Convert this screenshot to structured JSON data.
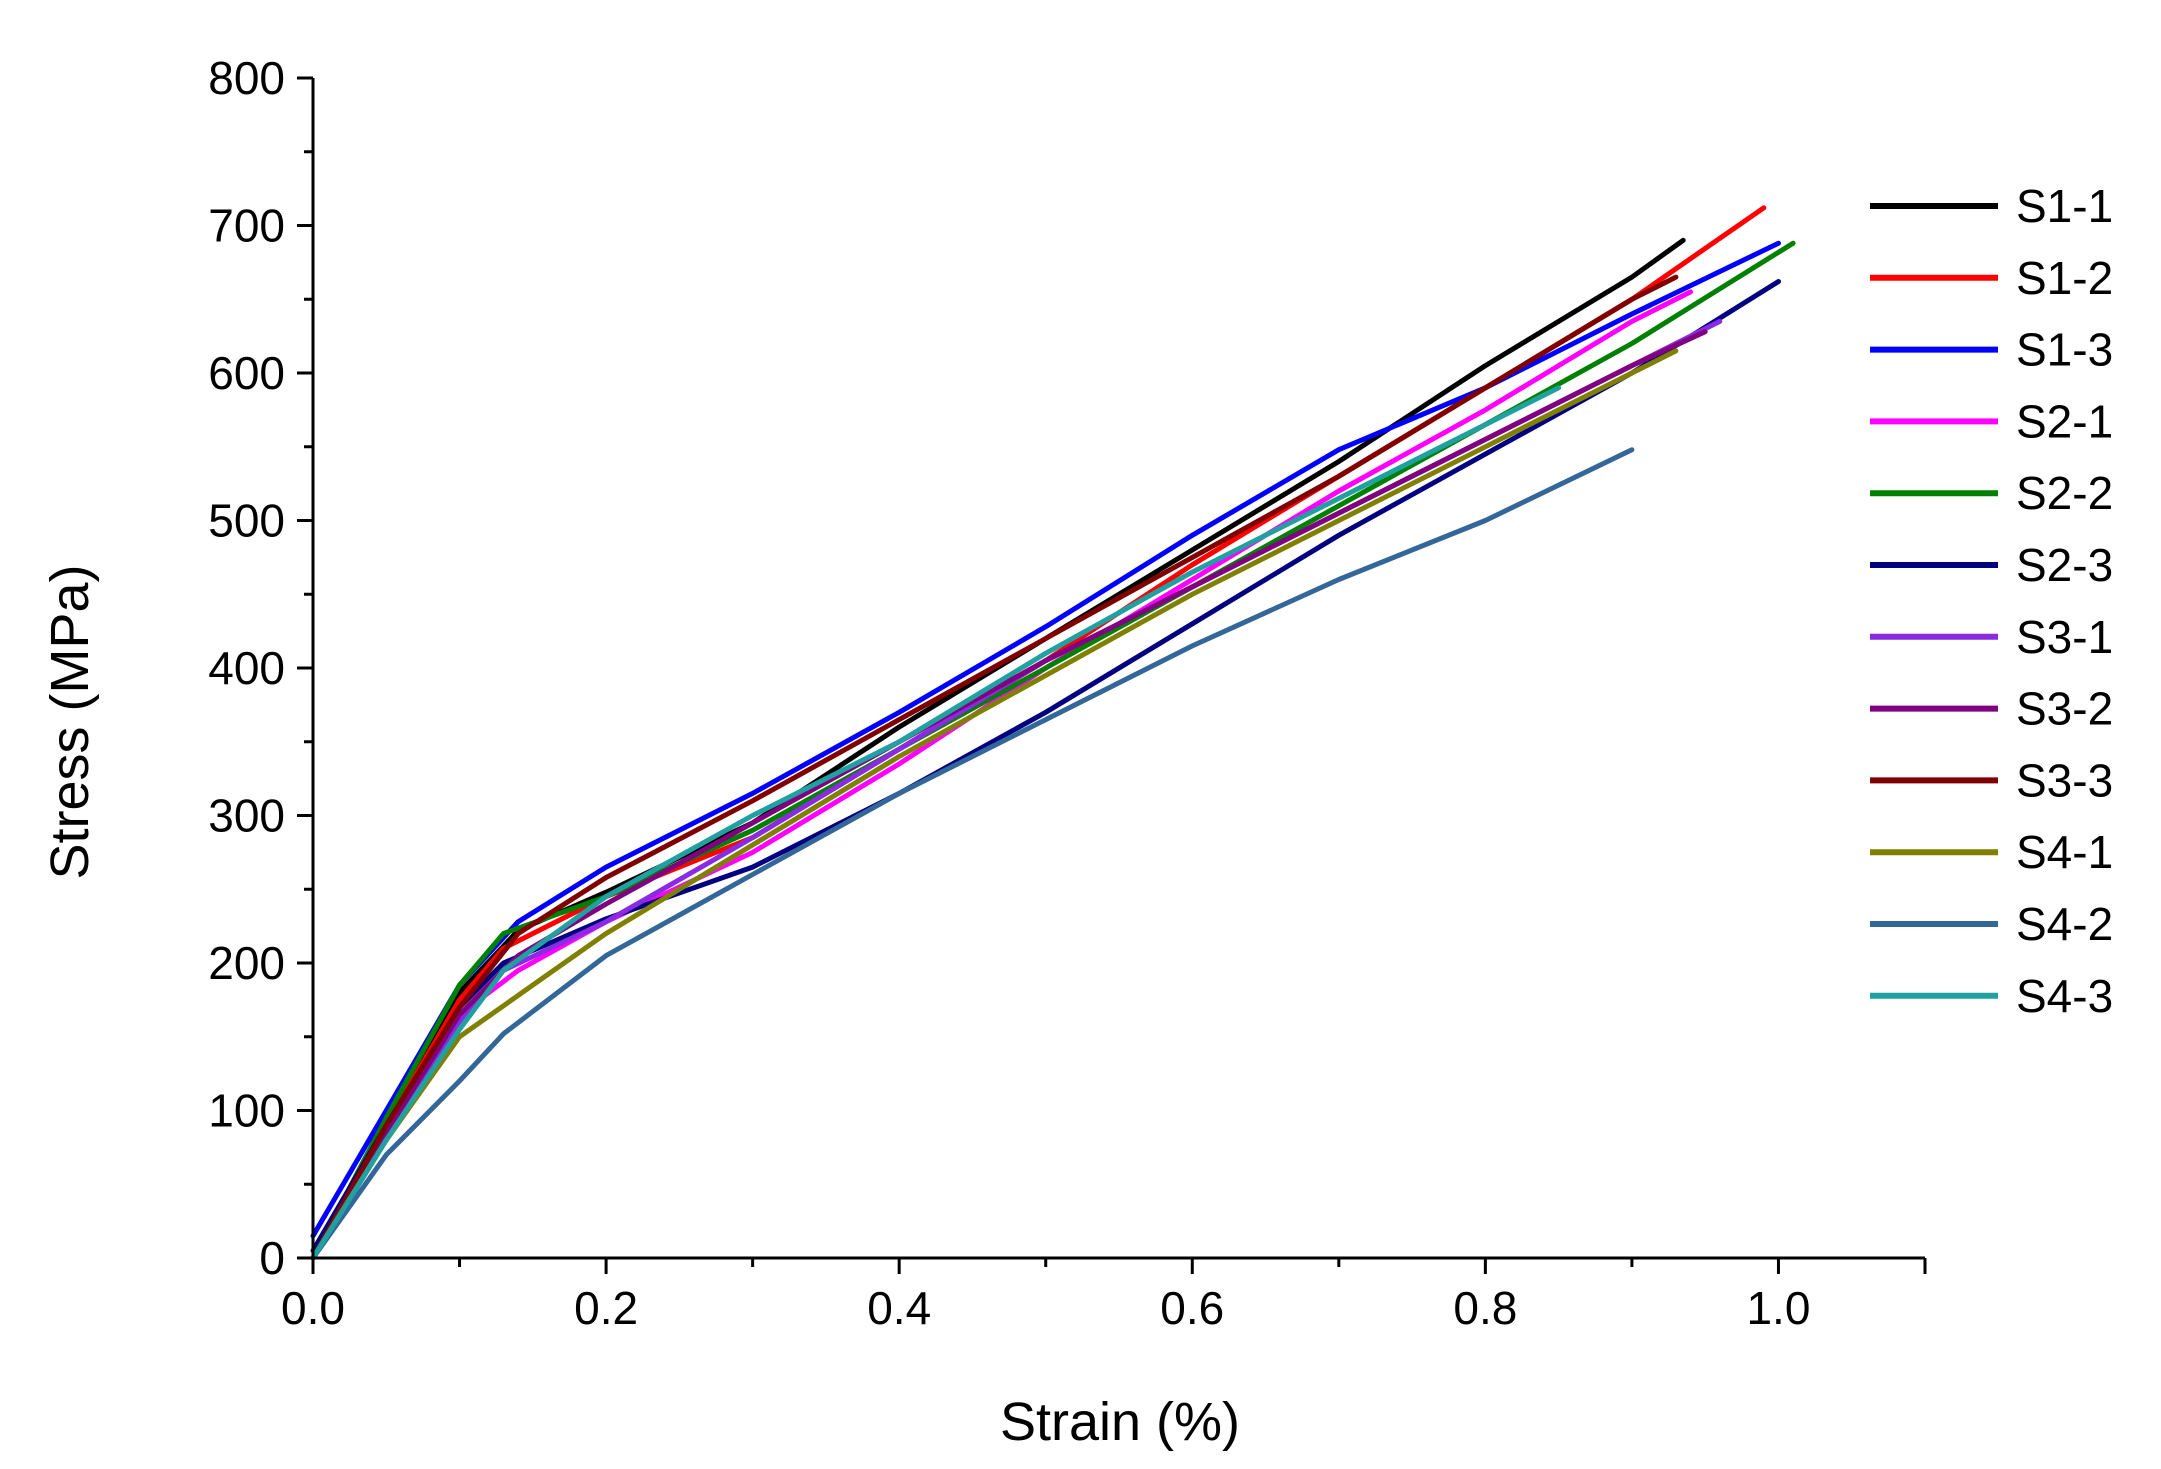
{
  "chart_data": {
    "type": "line",
    "title": "",
    "xlabel": "Strain (%)",
    "ylabel": "Stress (MPa)",
    "xlim": [
      0,
      1.1
    ],
    "ylim": [
      0,
      800
    ],
    "xticks": [
      0.0,
      0.2,
      0.4,
      0.6,
      0.8,
      1.0
    ],
    "xtick_labels": [
      "0.0",
      "0.2",
      "0.4",
      "0.6",
      "0.8",
      "1.0"
    ],
    "yticks": [
      0,
      100,
      200,
      300,
      400,
      500,
      600,
      700,
      800
    ],
    "ytick_labels": [
      "0",
      "100",
      "200",
      "300",
      "400",
      "500",
      "600",
      "700",
      "800"
    ],
    "x_minor_step": 0.1,
    "y_minor_step": 50,
    "grid": false,
    "legend_position": "right",
    "series": [
      {
        "name": "S1-1",
        "color": "#000000",
        "x": [
          0.0,
          0.05,
          0.1,
          0.14,
          0.2,
          0.3,
          0.4,
          0.5,
          0.6,
          0.7,
          0.8,
          0.9,
          0.935
        ],
        "y": [
          0,
          95,
          180,
          222,
          248,
          295,
          360,
          420,
          480,
          540,
          605,
          665,
          690
        ]
      },
      {
        "name": "S1-2",
        "color": "#ff0000",
        "x": [
          0.0,
          0.05,
          0.1,
          0.13,
          0.2,
          0.3,
          0.4,
          0.5,
          0.6,
          0.7,
          0.8,
          0.9,
          0.99
        ],
        "y": [
          0,
          90,
          175,
          210,
          245,
          285,
          345,
          405,
          470,
          530,
          590,
          650,
          712
        ]
      },
      {
        "name": "S1-3",
        "color": "#0000ff",
        "x": [
          0.0,
          0.05,
          0.1,
          0.14,
          0.2,
          0.3,
          0.4,
          0.5,
          0.6,
          0.7,
          0.8,
          0.9,
          1.0
        ],
        "y": [
          15,
          100,
          185,
          228,
          265,
          315,
          370,
          428,
          490,
          548,
          590,
          640,
          688
        ]
      },
      {
        "name": "S2-1",
        "color": "#ff00ff",
        "x": [
          0.0,
          0.05,
          0.1,
          0.14,
          0.2,
          0.3,
          0.4,
          0.5,
          0.6,
          0.7,
          0.8,
          0.9,
          0.94
        ],
        "y": [
          0,
          85,
          165,
          195,
          228,
          275,
          335,
          400,
          460,
          520,
          575,
          635,
          655
        ]
      },
      {
        "name": "S2-2",
        "color": "#008000",
        "x": [
          0.0,
          0.05,
          0.1,
          0.13,
          0.2,
          0.3,
          0.4,
          0.5,
          0.6,
          0.7,
          0.8,
          0.9,
          1.01
        ],
        "y": [
          0,
          95,
          185,
          220,
          245,
          290,
          345,
          400,
          455,
          510,
          565,
          620,
          688
        ]
      },
      {
        "name": "S2-3",
        "color": "#000080",
        "x": [
          0.0,
          0.05,
          0.1,
          0.13,
          0.2,
          0.3,
          0.4,
          0.5,
          0.6,
          0.7,
          0.8,
          0.9,
          1.0
        ],
        "y": [
          5,
          90,
          170,
          200,
          230,
          265,
          315,
          370,
          430,
          490,
          545,
          600,
          662
        ]
      },
      {
        "name": "S3-1",
        "color": "#8a2be2",
        "x": [
          0.0,
          0.05,
          0.1,
          0.13,
          0.2,
          0.3,
          0.4,
          0.5,
          0.6,
          0.7,
          0.8,
          0.9,
          0.96
        ],
        "y": [
          0,
          85,
          160,
          195,
          228,
          285,
          345,
          405,
          455,
          505,
          555,
          605,
          635
        ]
      },
      {
        "name": "S3-2",
        "color": "#800080",
        "x": [
          0.0,
          0.05,
          0.1,
          0.14,
          0.2,
          0.3,
          0.4,
          0.5,
          0.6,
          0.7,
          0.8,
          0.9,
          0.95
        ],
        "y": [
          0,
          85,
          165,
          205,
          240,
          295,
          350,
          405,
          455,
          505,
          555,
          605,
          628
        ]
      },
      {
        "name": "S3-3",
        "color": "#800000",
        "x": [
          0.0,
          0.05,
          0.1,
          0.14,
          0.2,
          0.3,
          0.4,
          0.5,
          0.6,
          0.7,
          0.8,
          0.9,
          0.93
        ],
        "y": [
          0,
          90,
          170,
          220,
          258,
          310,
          365,
          420,
          475,
          530,
          590,
          650,
          665
        ]
      },
      {
        "name": "S4-1",
        "color": "#808000",
        "x": [
          0.0,
          0.05,
          0.1,
          0.15,
          0.2,
          0.3,
          0.4,
          0.5,
          0.6,
          0.7,
          0.8,
          0.9,
          0.93
        ],
        "y": [
          0,
          80,
          150,
          185,
          220,
          280,
          340,
          395,
          450,
          500,
          550,
          600,
          615
        ]
      },
      {
        "name": "S4-2",
        "color": "#336699",
        "x": [
          0.0,
          0.05,
          0.1,
          0.13,
          0.2,
          0.3,
          0.4,
          0.5,
          0.6,
          0.7,
          0.8,
          0.9
        ],
        "y": [
          0,
          70,
          120,
          152,
          205,
          260,
          315,
          365,
          415,
          460,
          500,
          548
        ]
      },
      {
        "name": "S4-3",
        "color": "#20a0a0",
        "x": [
          0.0,
          0.05,
          0.1,
          0.13,
          0.2,
          0.3,
          0.4,
          0.5,
          0.6,
          0.7,
          0.8,
          0.85
        ],
        "y": [
          0,
          80,
          155,
          195,
          245,
          300,
          350,
          410,
          465,
          515,
          565,
          590
        ]
      }
    ]
  }
}
